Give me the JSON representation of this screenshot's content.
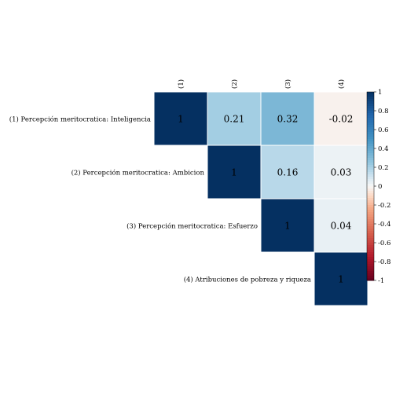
{
  "chart_data": {
    "type": "heatmap",
    "layout": "upper-triangle",
    "row_labels": [
      "(1) Percepción meritocratica: Inteligencia",
      "(2) Percepción meritocratica: Ambicion",
      "(3) Percepción meritocratica: Esfuerzo",
      "(4) Atribuciones de pobreza y riqueza"
    ],
    "col_labels": [
      "(1)",
      "(2)",
      "(3)",
      "(4)"
    ],
    "cells": [
      {
        "row": 0,
        "col": 0,
        "value": 1,
        "label": "1"
      },
      {
        "row": 0,
        "col": 1,
        "value": 0.21,
        "label": "0.21"
      },
      {
        "row": 0,
        "col": 2,
        "value": 0.32,
        "label": "0.32"
      },
      {
        "row": 0,
        "col": 3,
        "value": -0.02,
        "label": "-0.02"
      },
      {
        "row": 1,
        "col": 1,
        "value": 1,
        "label": "1"
      },
      {
        "row": 1,
        "col": 2,
        "value": 0.16,
        "label": "0.16"
      },
      {
        "row": 1,
        "col": 3,
        "value": 0.03,
        "label": "0.03"
      },
      {
        "row": 2,
        "col": 2,
        "value": 1,
        "label": "1"
      },
      {
        "row": 2,
        "col": 3,
        "value": 0.04,
        "label": "0.04"
      },
      {
        "row": 3,
        "col": 3,
        "value": 1,
        "label": "1"
      }
    ],
    "colorbar": {
      "range": [
        -1,
        1
      ],
      "ticks": [
        {
          "value": 1,
          "label": "1"
        },
        {
          "value": 0.8,
          "label": "0.8"
        },
        {
          "value": 0.6,
          "label": "0.6"
        },
        {
          "value": 0.4,
          "label": "0.4"
        },
        {
          "value": 0.2,
          "label": "0.2"
        },
        {
          "value": 0,
          "label": "0"
        },
        {
          "value": -0.2,
          "label": "-0.2"
        },
        {
          "value": -0.4,
          "label": "-0.4"
        },
        {
          "value": -0.6,
          "label": "-0.6"
        },
        {
          "value": -0.8,
          "label": "-0.8"
        },
        {
          "value": -1,
          "label": "-1"
        }
      ],
      "colors": {
        "negative_end": "#67001f",
        "mid": "#f7f7f7",
        "positive_end": "#053061"
      }
    },
    "grid": false,
    "legend_position": "right"
  }
}
